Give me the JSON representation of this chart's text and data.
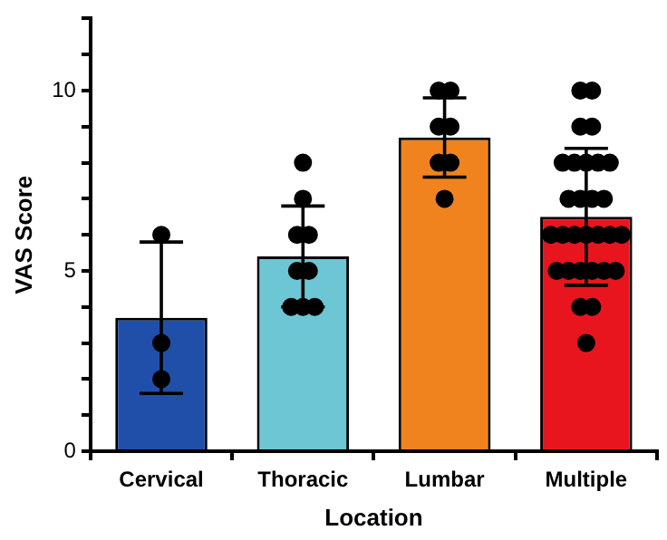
{
  "chart_data": {
    "type": "bar",
    "xlabel": "Location",
    "ylabel": "VAS Score",
    "categories": [
      "Cervical",
      "Thoracic",
      "Lumbar",
      "Multiple"
    ],
    "series": [
      {
        "colors": [
          "#1f4fa8",
          "#6cc6d4",
          "#f0831e",
          "#e8151e"
        ],
        "values": [
          3.7,
          5.4,
          8.7,
          6.5
        ],
        "errors": [
          2.1,
          1.4,
          1.1,
          1.9
        ]
      },
      {
        "type": "scatter",
        "color": "#000000",
        "x": [
          "Cervical",
          "Cervical",
          "Cervical",
          "Thoracic",
          "Thoracic",
          "Thoracic",
          "Thoracic",
          "Thoracic",
          "Thoracic",
          "Thoracic",
          "Thoracic",
          "Thoracic",
          "Lumbar",
          "Lumbar",
          "Lumbar",
          "Lumbar",
          "Lumbar",
          "Lumbar",
          "Lumbar",
          "Multiple",
          "Multiple",
          "Multiple",
          "Multiple",
          "Multiple",
          "Multiple",
          "Multiple",
          "Multiple",
          "Multiple",
          "Multiple",
          "Multiple",
          "Multiple",
          "Multiple",
          "Multiple",
          "Multiple",
          "Multiple",
          "Multiple",
          "Multiple",
          "Multiple",
          "Multiple",
          "Multiple",
          "Multiple",
          "Multiple",
          "Multiple",
          "Multiple",
          "Multiple",
          "Multiple",
          "Multiple",
          "Multiple"
        ],
        "values": [
          6,
          3,
          2,
          8,
          7,
          6,
          6,
          5,
          5,
          4,
          4,
          4,
          10,
          10,
          9,
          9,
          8,
          8,
          7,
          10,
          10,
          9,
          9,
          8,
          8,
          8,
          8,
          8,
          7,
          7,
          7,
          7,
          6,
          6,
          6,
          6,
          6,
          6,
          6,
          5,
          5,
          5,
          5,
          5,
          5,
          4,
          4,
          3
        ]
      }
    ],
    "ylim": [
      0,
      12
    ],
    "yticks": [
      0,
      {
        "value": 1,
        "label": null
      },
      {
        "value": 2,
        "label": null
      },
      {
        "value": 3,
        "label": null
      },
      {
        "value": 4,
        "label": null
      },
      5,
      {
        "value": 6,
        "label": null
      },
      {
        "value": 7,
        "label": null
      },
      {
        "value": 8,
        "label": null
      },
      {
        "value": 9,
        "label": null
      },
      10,
      {
        "value": 11,
        "label": null
      },
      {
        "value": 12,
        "label": null
      }
    ],
    "marker": "circle",
    "grid": false,
    "legend": false
  }
}
